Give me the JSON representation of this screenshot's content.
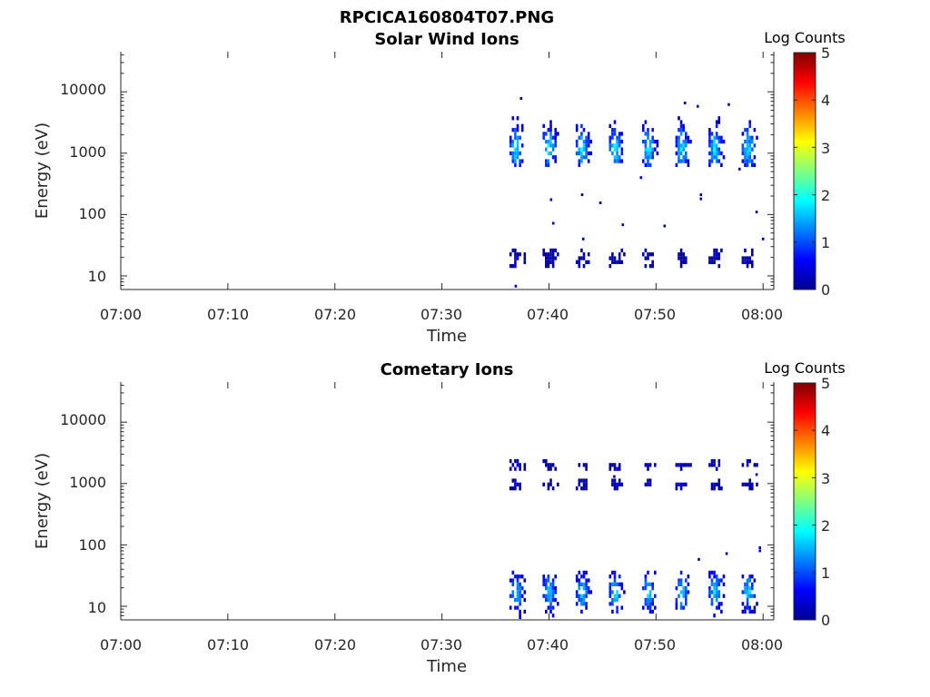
{
  "figure": {
    "filename": "RPCICA160804T07.PNG"
  },
  "chart_data": [
    {
      "type": "heatmap",
      "title": "Solar Wind Ions",
      "xlabel": "Time",
      "ylabel": "Energy (eV)",
      "x_ticks": [
        "07:00",
        "07:10",
        "07:20",
        "07:30",
        "07:40",
        "07:50",
        "08:00"
      ],
      "y_ticks": [
        "10",
        "100",
        "1000",
        "10000"
      ],
      "y_scale": "log",
      "xlim_minutes": [
        0,
        61
      ],
      "ylim_eV": [
        6,
        45000
      ],
      "colorbar": {
        "label": "Log Counts",
        "range": [
          0,
          5
        ],
        "ticks": [
          "0",
          "1",
          "2",
          "3",
          "4",
          "5"
        ],
        "colormap": "jet"
      },
      "sweeps_start_minutes": [
        36.3,
        39.4,
        42.5,
        45.6,
        48.7,
        51.8,
        54.9,
        58.0
      ],
      "groups": [
        {
          "name": "high-energy",
          "center_eV": 1300,
          "min_eV": 600,
          "max_eV": 4000,
          "peak_log_counts": 1.9
        },
        {
          "name": "low-energy",
          "center_eV": 21,
          "min_eV": 14,
          "max_eV": 28,
          "peak_log_counts": 0.2
        }
      ],
      "scatter_points": [
        {
          "x": 37.4,
          "y": 7800,
          "v": 0.2
        },
        {
          "x": 40.2,
          "y": 175,
          "v": 0.2
        },
        {
          "x": 40.4,
          "y": 72,
          "v": 0.2
        },
        {
          "x": 43.1,
          "y": 210,
          "v": 0.1
        },
        {
          "x": 44.8,
          "y": 155,
          "v": 0.1
        },
        {
          "x": 46.9,
          "y": 68,
          "v": 0.1
        },
        {
          "x": 48.6,
          "y": 400,
          "v": 0.2
        },
        {
          "x": 50.8,
          "y": 65,
          "v": 0.1
        },
        {
          "x": 52.7,
          "y": 6600,
          "v": 0.2
        },
        {
          "x": 53.9,
          "y": 5800,
          "v": 0.2
        },
        {
          "x": 54.2,
          "y": 210,
          "v": 0.2
        },
        {
          "x": 54.2,
          "y": 180,
          "v": 0.1
        },
        {
          "x": 56.8,
          "y": 6200,
          "v": 0.2
        },
        {
          "x": 57.8,
          "y": 550,
          "v": 0.2
        },
        {
          "x": 59.4,
          "y": 110,
          "v": 0.2
        },
        {
          "x": 60.0,
          "y": 40,
          "v": 0.2
        },
        {
          "x": 36.9,
          "y": 6.8,
          "v": 0.2
        },
        {
          "x": 43.2,
          "y": 40,
          "v": 0.2
        }
      ]
    },
    {
      "type": "heatmap",
      "title": "Cometary Ions",
      "xlabel": "Time",
      "ylabel": "Energy (eV)",
      "x_ticks": [
        "07:00",
        "07:10",
        "07:20",
        "07:30",
        "07:40",
        "07:50",
        "08:00"
      ],
      "y_ticks": [
        "10",
        "100",
        "1000",
        "10000"
      ],
      "y_scale": "log",
      "xlim_minutes": [
        0,
        61
      ],
      "ylim_eV": [
        6,
        45000
      ],
      "colorbar": {
        "label": "Log Counts",
        "range": [
          0,
          5
        ],
        "ticks": [
          "0",
          "1",
          "2",
          "3",
          "4",
          "5"
        ],
        "colormap": "jet"
      },
      "sweeps_start_minutes": [
        36.3,
        39.4,
        42.5,
        45.6,
        48.7,
        51.8,
        54.9,
        58.0
      ],
      "groups": [
        {
          "name": "high-energy",
          "center_eV": 2100,
          "min_eV": 1800,
          "max_eV": 2500,
          "peak_log_counts": 0.3
        },
        {
          "name": "mid-energy",
          "center_eV": 1000,
          "min_eV": 800,
          "max_eV": 1200,
          "peak_log_counts": 0.3
        },
        {
          "name": "low-energy",
          "center_eV": 18,
          "min_eV": 7,
          "max_eV": 38,
          "peak_log_counts": 1.8
        }
      ],
      "scatter_points": [
        {
          "x": 54.0,
          "y": 58,
          "v": 0.2
        },
        {
          "x": 56.6,
          "y": 72,
          "v": 0.1
        },
        {
          "x": 59.7,
          "y": 80,
          "v": 0.3
        },
        {
          "x": 59.7,
          "y": 90,
          "v": 0.3
        },
        {
          "x": 46.1,
          "y": 1300,
          "v": 0.2
        },
        {
          "x": 59.4,
          "y": 1400,
          "v": 0.3
        },
        {
          "x": 37.3,
          "y": 6.5,
          "v": 0.3
        }
      ]
    }
  ]
}
